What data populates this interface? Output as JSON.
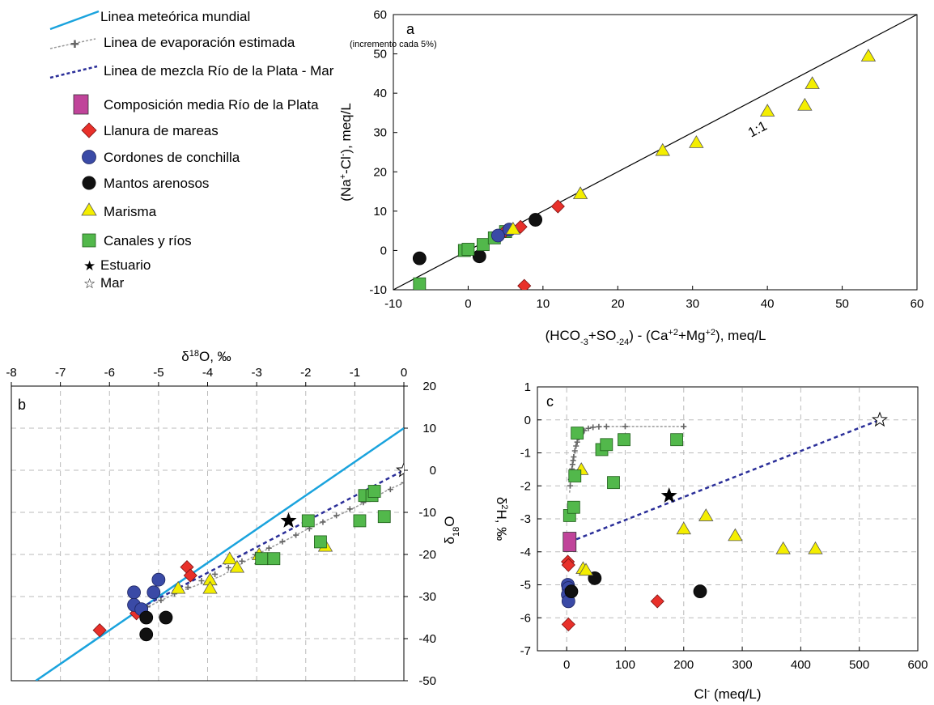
{
  "legend": {
    "items": [
      {
        "key": "gmwl",
        "label": "Linea meteórica mundial"
      },
      {
        "key": "evap",
        "label": "Linea de evaporación estimada",
        "sub": "(incremento cada 5%)"
      },
      {
        "key": "mix",
        "label": "Linea de mezcla Río de la Plata - Mar"
      },
      {
        "key": "rdp",
        "label": "Composición media Río de la Plata"
      },
      {
        "key": "llanura",
        "label": "Llanura de mareas"
      },
      {
        "key": "cordones",
        "label": "Cordones de conchilla"
      },
      {
        "key": "mantos",
        "label": "Mantos arenosos"
      },
      {
        "key": "marisma",
        "label": "Marisma"
      },
      {
        "key": "canales",
        "label": "Canales y ríos"
      },
      {
        "key": "estuario",
        "label": "Estuario"
      },
      {
        "key": "mar",
        "label": "Mar"
      }
    ]
  },
  "colors": {
    "gmwl": "#1aa3dd",
    "mix": "#2b2f99",
    "evap": "#999999",
    "rdp": "#c0449a",
    "llanura": "#e8302a",
    "cordones": "#3a4aa6",
    "mantos": "#111111",
    "marisma": "#f4ee00",
    "canales": "#52b84b"
  },
  "chart_data": [
    {
      "panel": "a",
      "type": "scatter",
      "xlabel": "(HCO-3+SO-24) - (Ca+2+Mg+2), meq/L",
      "ylabel": "(Na+-Cl-), meq/L",
      "xlim": [
        -10,
        60
      ],
      "ylim": [
        -10,
        60
      ],
      "xticks": [
        -10,
        0,
        10,
        20,
        30,
        40,
        50,
        60
      ],
      "yticks": [
        -10,
        0,
        10,
        20,
        30,
        40,
        50,
        60
      ],
      "grid": false,
      "annotation": "1:1",
      "series": [
        {
          "name": "Mantos arenosos",
          "points": [
            [
              -6.5,
              -2
            ],
            [
              1.5,
              -1.5
            ],
            [
              9,
              7.8
            ]
          ]
        },
        {
          "name": "Canales y ríos",
          "points": [
            [
              -6.5,
              -8.5
            ],
            [
              -0.5,
              0
            ],
            [
              0,
              0.3
            ],
            [
              2,
              1.5
            ],
            [
              3.5,
              3.2
            ],
            [
              5,
              4.8
            ]
          ]
        },
        {
          "name": "Llanura de mareas",
          "points": [
            [
              7.5,
              -9
            ],
            [
              7,
              6
            ],
            [
              12,
              11.2
            ],
            [
              5,
              5
            ]
          ]
        },
        {
          "name": "Cordones de conchilla",
          "points": [
            [
              4,
              3.8
            ],
            [
              5.5,
              5.3
            ]
          ]
        },
        {
          "name": "Marisma",
          "points": [
            [
              6,
              5.5
            ],
            [
              15,
              14.5
            ],
            [
              26,
              25.5
            ],
            [
              30.5,
              27.5
            ],
            [
              40,
              35.5
            ],
            [
              45,
              37
            ],
            [
              46,
              42.5
            ],
            [
              53.5,
              49.5
            ]
          ]
        }
      ]
    },
    {
      "panel": "b",
      "type": "scatter",
      "xlabel": "δ18O, ‰",
      "ylabel": "δ18O",
      "xlim": [
        -8,
        0
      ],
      "ylim": [
        -50,
        20
      ],
      "xticks": [
        -8,
        -7,
        -6,
        -5,
        -4,
        -3,
        -2,
        -1,
        0
      ],
      "yticks": [
        -50,
        -40,
        -30,
        -20,
        -10,
        0,
        10,
        20
      ],
      "grid": true,
      "series": [
        {
          "name": "Llanura de mareas",
          "points": [
            [
              -6.2,
              -38
            ],
            [
              -5.45,
              -34
            ],
            [
              -4.42,
              -23
            ],
            [
              -4.35,
              -25
            ]
          ]
        },
        {
          "name": "Cordones de conchilla",
          "points": [
            [
              -5.5,
              -29
            ],
            [
              -5.5,
              -32
            ],
            [
              -5.35,
              -33
            ],
            [
              -5.1,
              -29
            ],
            [
              -5.0,
              -26
            ]
          ]
        },
        {
          "name": "Mantos arenosos",
          "points": [
            [
              -5.25,
              -35
            ],
            [
              -5.25,
              -39
            ],
            [
              -4.85,
              -35
            ]
          ]
        },
        {
          "name": "Marisma",
          "points": [
            [
              -4.6,
              -28
            ],
            [
              -3.95,
              -26
            ],
            [
              -3.95,
              -28
            ],
            [
              -3.55,
              -21
            ],
            [
              -3.4,
              -23
            ],
            [
              -2.95,
              -20
            ],
            [
              -2.9,
              -21
            ],
            [
              -1.6,
              -18
            ]
          ]
        },
        {
          "name": "Canales y ríos",
          "points": [
            [
              -2.9,
              -21
            ],
            [
              -2.65,
              -21
            ],
            [
              -1.95,
              -12
            ],
            [
              -1.7,
              -17
            ],
            [
              -0.9,
              -12
            ],
            [
              -0.8,
              -6
            ],
            [
              -0.65,
              -6
            ],
            [
              -0.6,
              -5
            ],
            [
              -0.4,
              -11
            ]
          ]
        },
        {
          "name": "Estuario",
          "points": [
            [
              -2.35,
              -12
            ]
          ]
        },
        {
          "name": "Mar",
          "points": [
            [
              0,
              0
            ]
          ]
        }
      ]
    },
    {
      "panel": "c",
      "type": "scatter",
      "xlabel": "Cl- (meq/L)",
      "ylabel": "δ2H, ‰",
      "xlim": [
        -50,
        600
      ],
      "ylim": [
        -7,
        1
      ],
      "xticks": [
        0,
        100,
        200,
        300,
        400,
        500,
        600
      ],
      "yticks": [
        -7,
        -6,
        -5,
        -4,
        -3,
        -2,
        -1,
        0,
        1
      ],
      "grid": true,
      "series": [
        {
          "name": "Composición media Río de la Plata",
          "points": [
            [
              5,
              -3.7
            ]
          ]
        },
        {
          "name": "Llanura de mareas",
          "points": [
            [
              2,
              -4.3
            ],
            [
              3,
              -4.4
            ],
            [
              3,
              -6.2
            ],
            [
              155,
              -5.5
            ]
          ]
        },
        {
          "name": "Cordones de conchilla",
          "points": [
            [
              2,
              -5.0
            ],
            [
              3,
              -5.1
            ],
            [
              2,
              -5.3
            ],
            [
              3,
              -5.5
            ]
          ]
        },
        {
          "name": "Mantos arenosos",
          "points": [
            [
              8,
              -5.2
            ],
            [
              48,
              -4.8
            ],
            [
              228,
              -5.2
            ]
          ]
        },
        {
          "name": "Marisma",
          "points": [
            [
              25,
              -1.5
            ],
            [
              28,
              -4.5
            ],
            [
              33,
              -4.55
            ],
            [
              200,
              -3.3
            ],
            [
              238,
              -2.9
            ],
            [
              288,
              -3.5
            ],
            [
              370,
              -3.9
            ],
            [
              425,
              -3.9
            ]
          ]
        },
        {
          "name": "Canales y ríos",
          "points": [
            [
              5,
              -2.9
            ],
            [
              12,
              -2.65
            ],
            [
              14,
              -1.7
            ],
            [
              18,
              -0.4
            ],
            [
              60,
              -0.9
            ],
            [
              68,
              -0.75
            ],
            [
              80,
              -1.9
            ],
            [
              98,
              -0.6
            ],
            [
              188,
              -0.6
            ]
          ]
        },
        {
          "name": "Estuario",
          "points": [
            [
              175,
              -2.3
            ]
          ]
        },
        {
          "name": "Mar",
          "points": [
            [
              535,
              0
            ]
          ]
        }
      ]
    }
  ]
}
